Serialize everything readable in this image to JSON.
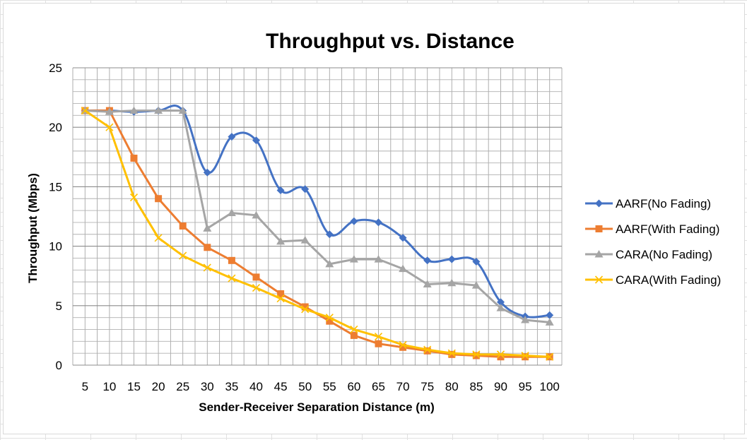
{
  "chart_data": {
    "type": "line",
    "title": "Throughput vs. Distance",
    "xlabel": "Sender-Receiver Separation Distance (m)",
    "ylabel": "Throughput   (Mbps)",
    "categories": [
      "5",
      "10",
      "15",
      "20",
      "25",
      "30",
      "35",
      "40",
      "45",
      "50",
      "55",
      "60",
      "65",
      "70",
      "75",
      "80",
      "85",
      "90",
      "95",
      "100"
    ],
    "ylim": [
      0,
      25
    ],
    "yticks": [
      0,
      5,
      10,
      15,
      20,
      25
    ],
    "grid": true,
    "legend_position": "right",
    "series": [
      {
        "name": "AARF(No Fading)",
        "color": "#4472c4",
        "marker": "diamond",
        "smooth": true,
        "values": [
          21.4,
          21.4,
          21.3,
          21.4,
          21.4,
          16.2,
          19.2,
          18.9,
          14.7,
          14.8,
          11.0,
          12.1,
          12.0,
          10.7,
          8.8,
          8.9,
          8.7,
          5.3,
          4.1,
          4.2
        ]
      },
      {
        "name": "AARF(With Fading)",
        "color": "#ed7d31",
        "marker": "square",
        "smooth": false,
        "values": [
          21.4,
          21.4,
          17.4,
          14.0,
          11.7,
          9.9,
          8.8,
          7.4,
          6.0,
          4.9,
          3.7,
          2.5,
          1.8,
          1.5,
          1.2,
          0.9,
          0.8,
          0.7,
          0.7,
          0.7
        ]
      },
      {
        "name": "CARA(No Fading)",
        "color": "#a5a5a5",
        "marker": "triangle",
        "smooth": false,
        "values": [
          21.4,
          21.3,
          21.4,
          21.4,
          21.4,
          11.5,
          12.8,
          12.6,
          10.4,
          10.5,
          8.5,
          8.9,
          8.9,
          8.1,
          6.8,
          6.9,
          6.7,
          4.8,
          3.8,
          3.6
        ]
      },
      {
        "name": "CARA(With Fading)",
        "color": "#ffc000",
        "marker": "x",
        "smooth": false,
        "values": [
          21.4,
          20.0,
          14.1,
          10.7,
          9.2,
          8.2,
          7.3,
          6.5,
          5.6,
          4.7,
          4.0,
          3.0,
          2.4,
          1.7,
          1.3,
          1.0,
          0.9,
          0.9,
          0.8,
          0.7
        ]
      }
    ]
  }
}
